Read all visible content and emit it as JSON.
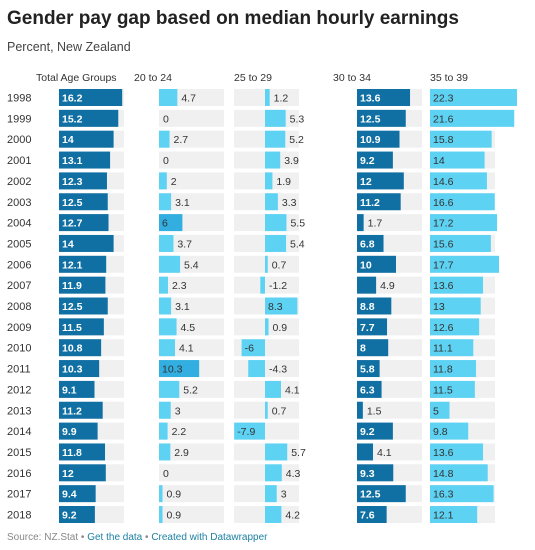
{
  "header": {
    "title": "Gender pay gap based on median hourly earnings",
    "subtitle": "Percent, New Zealand"
  },
  "footer": {
    "source": "Source: NZ.Stat",
    "sep1": " • ",
    "get_data": "Get the data",
    "sep2": " • ",
    "created_with": "Created with Datawrapper"
  },
  "colors": {
    "dark_bar": "#1170a3",
    "light_bar": "#5dd2f2",
    "background_band": "#f0f0f0",
    "text": "#333333"
  },
  "chart_data": {
    "type": "bar",
    "orientation": "horizontal",
    "layout": "small-multiples",
    "categories": [
      "1998",
      "1999",
      "2000",
      "2001",
      "2002",
      "2003",
      "2004",
      "2005",
      "2006",
      "2007",
      "2008",
      "2009",
      "2010",
      "2011",
      "2012",
      "2013",
      "2014",
      "2015",
      "2016",
      "2017",
      "2018"
    ],
    "series": [
      {
        "name": "Total Age Groups",
        "values": [
          16.2,
          15.2,
          14,
          13.1,
          12.3,
          12.5,
          12.7,
          14,
          12.1,
          11.9,
          12.5,
          11.5,
          10.8,
          10.3,
          9.1,
          11.2,
          9.9,
          11.8,
          12,
          9.4,
          9.2
        ]
      },
      {
        "name": "20 to 24",
        "values": [
          4.7,
          0,
          2.7,
          0,
          2,
          3.1,
          6,
          3.7,
          5.4,
          2.3,
          3.1,
          4.5,
          4.1,
          10.3,
          5.2,
          3,
          2.2,
          2.9,
          0,
          0.9,
          0.9
        ]
      },
      {
        "name": "25 to 29",
        "values": [
          1.2,
          5.3,
          5.2,
          3.9,
          1.9,
          3.3,
          5.5,
          5.4,
          0.7,
          -1.2,
          8.3,
          0.9,
          -6,
          -4.3,
          4.1,
          0.7,
          -7.9,
          5.7,
          4.3,
          3,
          4.2
        ]
      },
      {
        "name": "30 to 34",
        "values": [
          13.6,
          12.5,
          10.9,
          9.2,
          12,
          11.2,
          1.7,
          6.8,
          10,
          4.9,
          8.8,
          7.7,
          8,
          5.8,
          6.3,
          1.5,
          9.2,
          4.1,
          9.3,
          12.5,
          7.6
        ]
      },
      {
        "name": "35 to 39",
        "values": [
          22.3,
          21.6,
          15.8,
          14,
          14.6,
          16.6,
          17.2,
          15.6,
          17.7,
          13.6,
          13,
          12.6,
          11.1,
          11.8,
          11.5,
          5,
          9.8,
          13.6,
          14.8,
          16.3,
          12.1
        ]
      }
    ],
    "xlim": [
      -8,
      23
    ],
    "grid": false,
    "legend": "none"
  }
}
